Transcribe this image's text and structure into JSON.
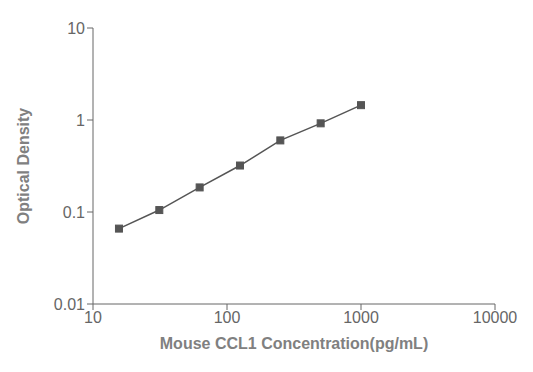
{
  "chart_data": {
    "type": "line",
    "x": [
      15.625,
      31.25,
      62.5,
      125,
      250,
      500,
      1000
    ],
    "values": [
      0.066,
      0.105,
      0.185,
      0.32,
      0.6,
      0.92,
      1.45
    ],
    "color": "#555555",
    "marker": "square",
    "xlabel": "Mouse CCL1 Concentration(pg/mL)",
    "ylabel": "Optical Density",
    "log": true,
    "xlim": [
      10,
      10000
    ],
    "ylim": [
      0.01,
      10
    ],
    "xticks": [
      10,
      100,
      1000,
      10000
    ],
    "yticks": [
      0.01,
      0.1,
      1,
      10
    ]
  }
}
